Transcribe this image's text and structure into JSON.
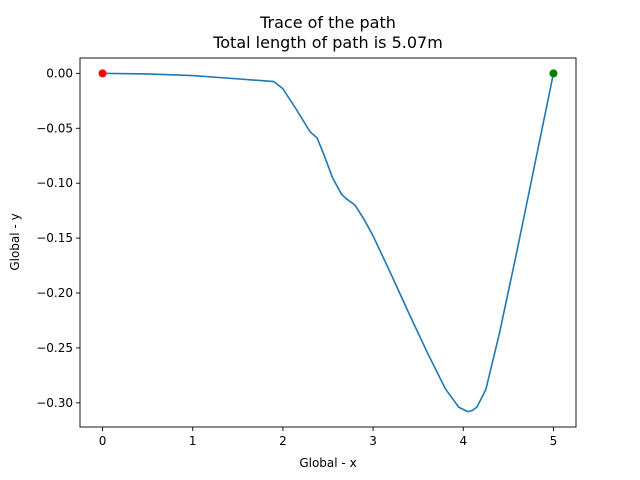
{
  "chart_data": {
    "type": "line",
    "title": "Trace of the path",
    "subtitle": "Total length of path is 5.07m",
    "xlabel": "Global - x",
    "ylabel": "Global - y",
    "xlim": [
      -0.25,
      5.25
    ],
    "ylim": [
      -0.322,
      0.014
    ],
    "x_ticks": [
      0,
      1,
      2,
      3,
      4,
      5
    ],
    "y_ticks": [
      0.0,
      -0.05,
      -0.1,
      -0.15,
      -0.2,
      -0.25,
      -0.3
    ],
    "x_tick_labels": [
      "0",
      "1",
      "2",
      "3",
      "4",
      "5"
    ],
    "y_tick_labels": [
      "0.00",
      "−0.05",
      "−0.10",
      "−0.15",
      "−0.20",
      "−0.25",
      "−0.30"
    ],
    "grid": false,
    "series": [
      {
        "color": "#1f77b4",
        "x": [
          0,
          0.5,
          1.0,
          1.5,
          1.9,
          2.0,
          2.15,
          2.3,
          2.38,
          2.45,
          2.55,
          2.65,
          2.7,
          2.8,
          2.9,
          3.0,
          3.2,
          3.4,
          3.6,
          3.8,
          3.95,
          4.05,
          4.1,
          4.15,
          4.25,
          4.4,
          4.6,
          4.8,
          5.0
        ],
        "y": [
          0,
          -0.0005,
          -0.002,
          -0.005,
          -0.0075,
          -0.014,
          -0.033,
          -0.053,
          -0.059,
          -0.073,
          -0.095,
          -0.11,
          -0.114,
          -0.12,
          -0.133,
          -0.148,
          -0.183,
          -0.219,
          -0.254,
          -0.287,
          -0.304,
          -0.308,
          -0.307,
          -0.304,
          -0.288,
          -0.237,
          -0.16,
          -0.08,
          0.0
        ]
      }
    ],
    "markers": [
      {
        "x": 0,
        "y": 0,
        "color": "#ff0000"
      },
      {
        "x": 5,
        "y": 0,
        "color": "#008000"
      }
    ]
  }
}
